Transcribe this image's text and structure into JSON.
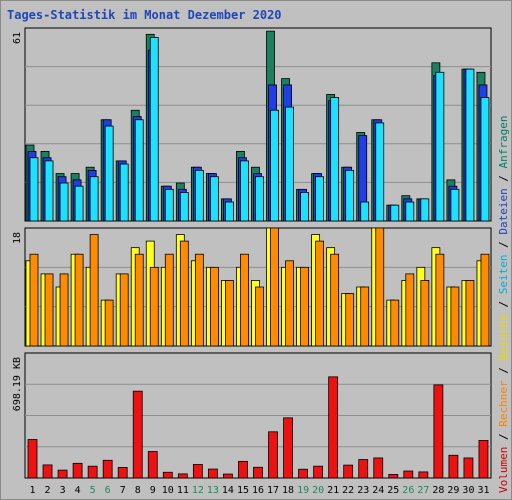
{
  "title": "Tages-Statistik im Monat Dezember 2020",
  "legend": [
    {
      "label": "Volumen",
      "color": "#cc0000"
    },
    {
      "label": " / ",
      "color": "#000000"
    },
    {
      "label": "Rechner",
      "color": "#ff8000"
    },
    {
      "label": " / ",
      "color": "#000000"
    },
    {
      "label": "Besuche",
      "color": "#e8d800"
    },
    {
      "label": " / ",
      "color": "#000000"
    },
    {
      "label": "Seiten",
      "color": "#00b0d8"
    },
    {
      "label": " / ",
      "color": "#000000"
    },
    {
      "label": "Dateien",
      "color": "#2040c0"
    },
    {
      "label": " / ",
      "color": "#000000"
    },
    {
      "label": "Anfragen",
      "color": "#008060"
    }
  ],
  "colors": {
    "anfragen": "#1b8060",
    "dateien": "#1f3ee6",
    "seiten": "#1ee0ff",
    "besuche": "#ffff20",
    "rechner": "#ff8c00",
    "volumen": "#ee1111",
    "weekend_label": "#1a8a5a",
    "weekday_label": "#000000"
  },
  "chart_data": [
    {
      "type": "bar",
      "panel": "top",
      "title": "",
      "ylabel": "61",
      "ylim": [
        0,
        61
      ],
      "grid": true,
      "categories": [
        "1",
        "2",
        "3",
        "4",
        "5",
        "6",
        "7",
        "8",
        "9",
        "10",
        "11",
        "12",
        "13",
        "14",
        "15",
        "16",
        "17",
        "18",
        "19",
        "20",
        "21",
        "22",
        "23",
        "24",
        "25",
        "26",
        "27",
        "28",
        "29",
        "30",
        "31"
      ],
      "series": [
        {
          "name": "Anfragen",
          "values": [
            24,
            22,
            15,
            15,
            17,
            32,
            19,
            35,
            59,
            11,
            12,
            17,
            15,
            7,
            22,
            17,
            60,
            45,
            10,
            15,
            40,
            17,
            28,
            32,
            5,
            8,
            7,
            50,
            13,
            48,
            47
          ]
        },
        {
          "name": "Dateien",
          "values": [
            22,
            20,
            14,
            13,
            16,
            32,
            19,
            33,
            54,
            11,
            10,
            17,
            15,
            7,
            20,
            15,
            43,
            43,
            10,
            15,
            38,
            17,
            27,
            32,
            5,
            7,
            7,
            46,
            11,
            48,
            43
          ]
        },
        {
          "name": "Seiten",
          "values": [
            20,
            19,
            12,
            11,
            14,
            30,
            18,
            32,
            58,
            10,
            9,
            16,
            14,
            6,
            19,
            14,
            35,
            36,
            9,
            14,
            39,
            16,
            6,
            31,
            5,
            6,
            7,
            47,
            10,
            48,
            39
          ]
        }
      ]
    },
    {
      "type": "bar",
      "panel": "middle",
      "title": "",
      "ylabel": "18",
      "ylim": [
        0,
        18
      ],
      "grid": true,
      "categories": [
        "1",
        "2",
        "3",
        "4",
        "5",
        "6",
        "7",
        "8",
        "9",
        "10",
        "11",
        "12",
        "13",
        "14",
        "15",
        "16",
        "17",
        "18",
        "19",
        "20",
        "21",
        "22",
        "23",
        "24",
        "25",
        "26",
        "27",
        "28",
        "29",
        "30",
        "31"
      ],
      "series": [
        {
          "name": "Besuche",
          "values": [
            13,
            11,
            9,
            14,
            12,
            7,
            11,
            15,
            16,
            12,
            17,
            13,
            12,
            10,
            12,
            10,
            18,
            12,
            12,
            17,
            15,
            8,
            9,
            18,
            7,
            10,
            12,
            15,
            9,
            10,
            13
          ]
        },
        {
          "name": "Rechner",
          "values": [
            14,
            11,
            11,
            14,
            17,
            7,
            11,
            14,
            12,
            14,
            16,
            14,
            12,
            10,
            14,
            9,
            18,
            13,
            12,
            16,
            14,
            8,
            9,
            18,
            7,
            11,
            10,
            14,
            9,
            10,
            14
          ]
        }
      ]
    },
    {
      "type": "bar",
      "panel": "bottom",
      "title": "",
      "ylabel": "698.19 KB",
      "ylim": [
        0,
        698.19
      ],
      "grid": true,
      "categories": [
        "1",
        "2",
        "3",
        "4",
        "5",
        "6",
        "7",
        "8",
        "9",
        "10",
        "11",
        "12",
        "13",
        "14",
        "15",
        "16",
        "17",
        "18",
        "19",
        "20",
        "21",
        "22",
        "23",
        "24",
        "25",
        "26",
        "27",
        "28",
        "29",
        "30",
        "31"
      ],
      "series": [
        {
          "name": "Volumen",
          "values": [
            215,
            73,
            44,
            82,
            66,
            99,
            59,
            485,
            148,
            32,
            23,
            76,
            50,
            22,
            93,
            60,
            258,
            336,
            49,
            66,
            565,
            72,
            103,
            112,
            20,
            39,
            34,
            520,
            127,
            112,
            210
          ]
        }
      ]
    }
  ],
  "x_labels": [
    {
      "text": "1",
      "weekend": false
    },
    {
      "text": "2",
      "weekend": false
    },
    {
      "text": "3",
      "weekend": false
    },
    {
      "text": "4",
      "weekend": false
    },
    {
      "text": "5",
      "weekend": true
    },
    {
      "text": "6",
      "weekend": true
    },
    {
      "text": "7",
      "weekend": false
    },
    {
      "text": "8",
      "weekend": false
    },
    {
      "text": "9",
      "weekend": false
    },
    {
      "text": "10",
      "weekend": false
    },
    {
      "text": "11",
      "weekend": false
    },
    {
      "text": "12",
      "weekend": true
    },
    {
      "text": "13",
      "weekend": true
    },
    {
      "text": "14",
      "weekend": false
    },
    {
      "text": "15",
      "weekend": false
    },
    {
      "text": "16",
      "weekend": false
    },
    {
      "text": "17",
      "weekend": false
    },
    {
      "text": "18",
      "weekend": false
    },
    {
      "text": "19",
      "weekend": true
    },
    {
      "text": "20",
      "weekend": true
    },
    {
      "text": "21",
      "weekend": false
    },
    {
      "text": "22",
      "weekend": false
    },
    {
      "text": "23",
      "weekend": false
    },
    {
      "text": "24",
      "weekend": false
    },
    {
      "text": "25",
      "weekend": false
    },
    {
      "text": "26",
      "weekend": true
    },
    {
      "text": "27",
      "weekend": true
    },
    {
      "text": "28",
      "weekend": false
    },
    {
      "text": "29",
      "weekend": false
    },
    {
      "text": "30",
      "weekend": false
    },
    {
      "text": "31",
      "weekend": false
    }
  ]
}
